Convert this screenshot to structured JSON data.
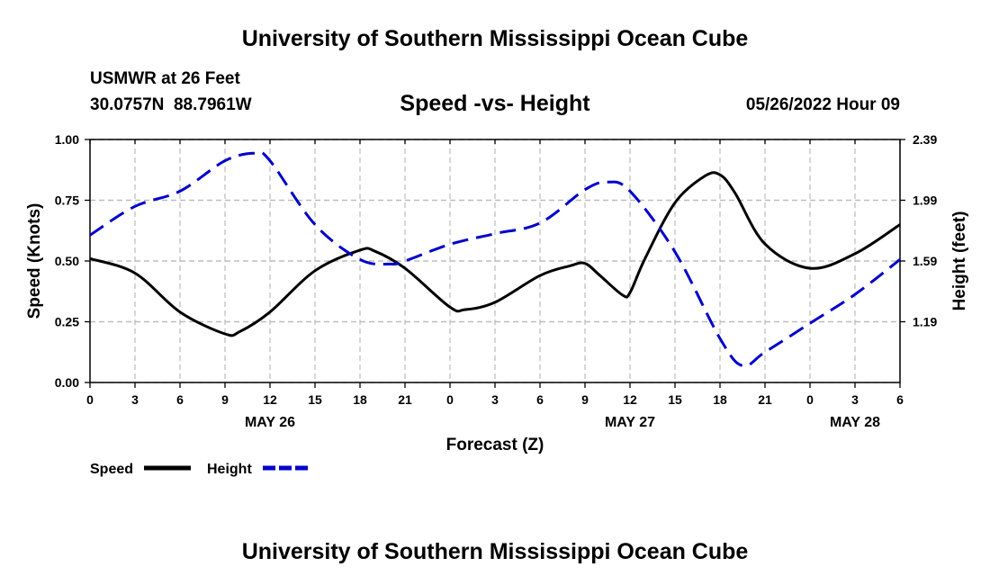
{
  "header": {
    "title": "University of Southern Mississippi Ocean Cube",
    "station": "USMWR at 26 Feet",
    "coords": "30.0757N  88.7961W",
    "date": "05/26/2022 Hour 09"
  },
  "footer": {
    "title": "University of Southern Mississippi Ocean Cube"
  },
  "chart_data": {
    "type": "line",
    "title": "Speed -vs- Height",
    "xlabel": "Forecast (Z)",
    "ylabel": "Speed (Knots)",
    "y2label": "Height (feet)",
    "x_range": [
      0,
      54
    ],
    "ylim": [
      0,
      1
    ],
    "y2lim": [
      0.79,
      2.39
    ],
    "x_ticks": [
      0,
      3,
      6,
      9,
      12,
      15,
      18,
      21,
      24,
      27,
      30,
      33,
      36,
      39,
      42,
      45,
      48,
      51,
      54
    ],
    "x_tick_labels": [
      "0",
      "3",
      "6",
      "9",
      "12",
      "15",
      "18",
      "21",
      "0",
      "3",
      "6",
      "9",
      "12",
      "15",
      "18",
      "21",
      "0",
      "3",
      "6"
    ],
    "date_labels": [
      {
        "x": 12,
        "label": "MAY 26"
      },
      {
        "x": 36,
        "label": "MAY 27"
      },
      {
        "x": 51,
        "label": "MAY 28"
      }
    ],
    "y_ticks": [
      0,
      0.25,
      0.5,
      0.75,
      1.0
    ],
    "y_tick_labels": [
      "0.00",
      "0.25",
      "0.50",
      "0.75",
      "1.00"
    ],
    "y2_ticks": [
      1.19,
      1.59,
      1.99,
      2.39
    ],
    "y2_tick_labels": [
      "1.19",
      "1.59",
      "1.99",
      "2.39"
    ],
    "grid": true,
    "legend": [
      {
        "label": "Speed",
        "color": "#000000",
        "dash": "solid"
      },
      {
        "label": "Height",
        "color": "#0000cc",
        "dash": "dashed"
      }
    ],
    "series": [
      {
        "name": "Speed",
        "axis": "left",
        "color": "#000000",
        "x": [
          0,
          3,
          6,
          9,
          10,
          12,
          15,
          18,
          19,
          21,
          24,
          25,
          27,
          30,
          32,
          33,
          34,
          35.5,
          36,
          37,
          39,
          41,
          42,
          43,
          45,
          48,
          51,
          54
        ],
        "values": [
          0.51,
          0.45,
          0.29,
          0.2,
          0.21,
          0.29,
          0.46,
          0.545,
          0.54,
          0.47,
          0.31,
          0.3,
          0.33,
          0.44,
          0.48,
          0.49,
          0.44,
          0.36,
          0.37,
          0.51,
          0.74,
          0.85,
          0.855,
          0.78,
          0.57,
          0.47,
          0.53,
          0.65
        ]
      },
      {
        "name": "Height",
        "axis": "right",
        "color": "#0000cc",
        "x": [
          0,
          3,
          6,
          9,
          11,
          12,
          15,
          18,
          20,
          21,
          24,
          27,
          30,
          33,
          34.5,
          36,
          39,
          42,
          43.5,
          45,
          48,
          51,
          54
        ],
        "values": [
          1.76,
          1.95,
          2.05,
          2.25,
          2.3,
          2.25,
          1.83,
          1.6,
          1.57,
          1.59,
          1.7,
          1.77,
          1.84,
          2.06,
          2.11,
          2.05,
          1.65,
          1.08,
          0.9,
          0.99,
          1.18,
          1.37,
          1.6
        ]
      }
    ]
  }
}
